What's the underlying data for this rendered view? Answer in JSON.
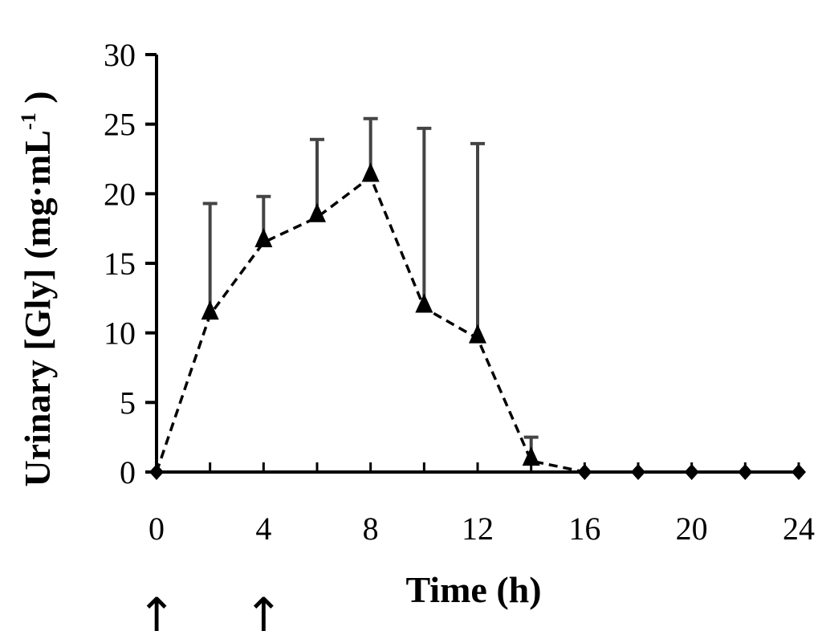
{
  "chart_data": {
    "type": "line",
    "title": "",
    "xlabel": "Time (h)",
    "ylabel": {
      "prefix": "Urinary [Gly] (mg·mL",
      "superscript": "-1",
      "suffix": " )"
    },
    "xlim": [
      0,
      24
    ],
    "ylim": [
      0,
      30
    ],
    "x_ticks": [
      0,
      4,
      8,
      12,
      16,
      20,
      24
    ],
    "y_ticks": [
      0,
      5,
      10,
      15,
      20,
      25,
      30
    ],
    "x_tick_labels": [
      "0",
      "4",
      "8",
      "12",
      "16",
      "20",
      "24"
    ],
    "y_tick_labels": [
      "0",
      "5",
      "10",
      "15",
      "20",
      "25",
      "30"
    ],
    "grid": false,
    "legend": "none",
    "series": [
      {
        "marker": "triangle",
        "line_style": "dashed",
        "color": "#000000",
        "x": [
          0,
          2,
          4,
          6,
          8,
          10,
          12,
          14,
          16,
          18,
          20,
          22,
          24
        ],
        "y": [
          0,
          11.3,
          16.5,
          18.3,
          21.2,
          11.8,
          9.6,
          0.8,
          0,
          0,
          0,
          0,
          0
        ],
        "error_upper": [
          0,
          19.3,
          19.8,
          23.9,
          25.4,
          24.7,
          23.6,
          2.5,
          0,
          0,
          0,
          0,
          0
        ]
      }
    ],
    "annotations": {
      "arrows_at_x": [
        0,
        4
      ],
      "arrow_symbol": "↑"
    }
  }
}
